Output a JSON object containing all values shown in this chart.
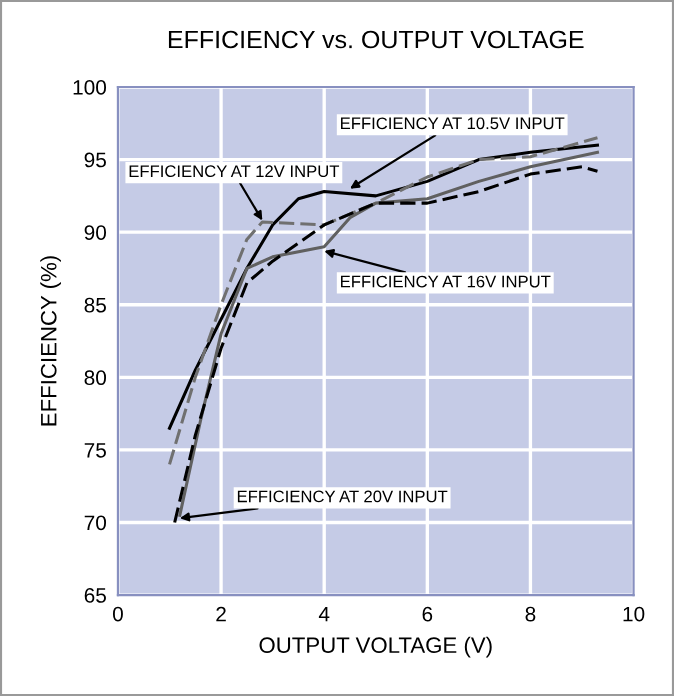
{
  "chart_data": {
    "type": "line",
    "title": "EFFICIENCY vs. OUTPUT VOLTAGE",
    "xlabel": "OUTPUT VOLTAGE (V)",
    "ylabel": "EFFICIENCY (%)",
    "xlim": [
      0,
      10
    ],
    "ylim": [
      65,
      100
    ],
    "xticks": [
      0,
      2,
      4,
      6,
      8,
      10
    ],
    "yticks": [
      65,
      70,
      75,
      80,
      85,
      90,
      95,
      100
    ],
    "grid": true,
    "series": [
      {
        "color": "#000000",
        "line_style": "solid",
        "x": [
          1.0,
          1.5,
          2.0,
          2.5,
          3.0,
          3.5,
          4.0,
          5.0,
          6.0,
          7.0,
          8.0,
          9.3
        ],
        "values": [
          76.5,
          80.5,
          84,
          87.5,
          90.5,
          92.3,
          92.8,
          92.5,
          93.5,
          95,
          95.5,
          96
        ]
      },
      {
        "color": "#707070",
        "line_style": "dashed",
        "x": [
          1.0,
          1.5,
          2.0,
          2.5,
          2.8,
          4.0,
          5.0,
          6.0,
          7.0,
          8.0,
          9.3
        ],
        "values": [
          74,
          80,
          85,
          89.5,
          90.7,
          90.5,
          92,
          93.8,
          95,
          95.2,
          96.5
        ]
      },
      {
        "color": "#606060",
        "line_style": "solid",
        "x": [
          1.2,
          1.6,
          2.0,
          2.5,
          3.0,
          4.0,
          4.5,
          5.0,
          6.0,
          7.0,
          8.0,
          9.3
        ],
        "values": [
          70.5,
          77,
          83,
          87.5,
          88.3,
          89,
          91,
          92,
          92.3,
          93.5,
          94.5,
          95.5
        ]
      },
      {
        "color": "#000000",
        "line_style": "dashed",
        "x": [
          1.1,
          1.5,
          2.0,
          2.5,
          3.0,
          4.0,
          5.0,
          6.0,
          7.0,
          8.0,
          9.0,
          9.3
        ],
        "values": [
          70,
          76,
          82,
          86.5,
          88,
          90.5,
          92,
          92,
          92.8,
          94,
          94.5,
          94.2
        ]
      }
    ],
    "annotations": [
      {
        "text": "EFFICIENCY AT 10.5V INPUT",
        "x": 4.5,
        "y": 93
      },
      {
        "text": "EFFICIENCY AT 12V INPUT",
        "x": 2.8,
        "y": 90.8
      },
      {
        "text": "EFFICIENCY AT 16V INPUT",
        "x": 4.0,
        "y": 88.7
      },
      {
        "text": "EFFICIENCY AT 20V INPUT",
        "x": 1.2,
        "y": 70.3
      }
    ]
  }
}
